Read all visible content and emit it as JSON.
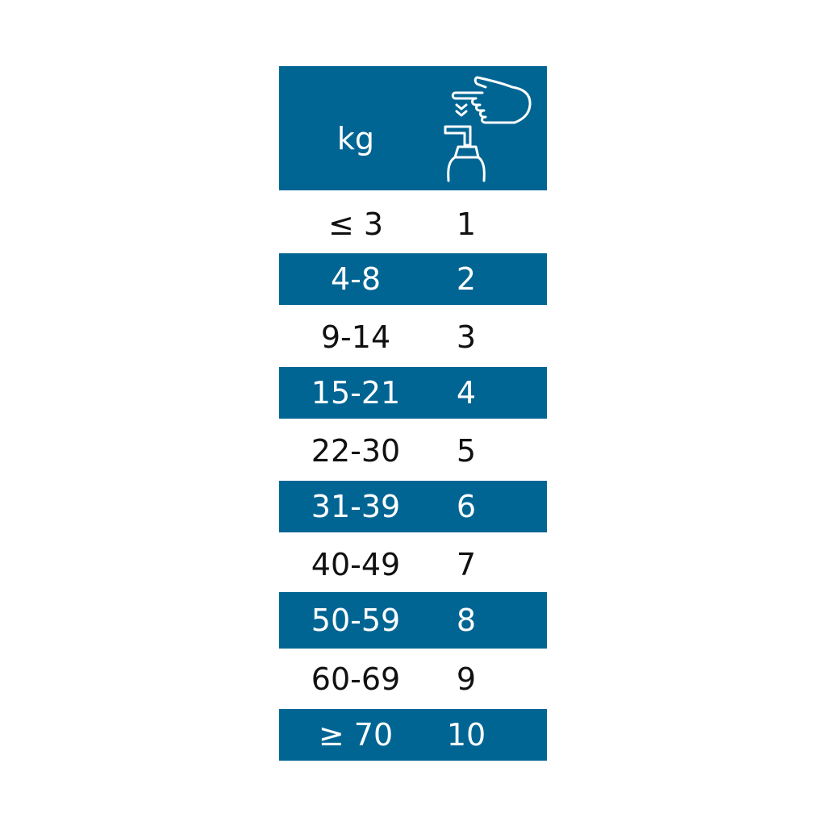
{
  "colors": {
    "accent": "#016593"
  },
  "header": {
    "weight_label": "kg",
    "icon": "hand-pressing-pump-icon"
  },
  "rows": [
    {
      "weight": "≤ 3",
      "pumps": "1"
    },
    {
      "weight": "4-8",
      "pumps": "2"
    },
    {
      "weight": "9-14",
      "pumps": "3"
    },
    {
      "weight": "15-21",
      "pumps": "4"
    },
    {
      "weight": "22-30",
      "pumps": "5"
    },
    {
      "weight": "31-39",
      "pumps": "6"
    },
    {
      "weight": "40-49",
      "pumps": "7"
    },
    {
      "weight": "50-59",
      "pumps": "8"
    },
    {
      "weight": "60-69",
      "pumps": "9"
    },
    {
      "weight": "≥ 70",
      "pumps": "10"
    }
  ]
}
